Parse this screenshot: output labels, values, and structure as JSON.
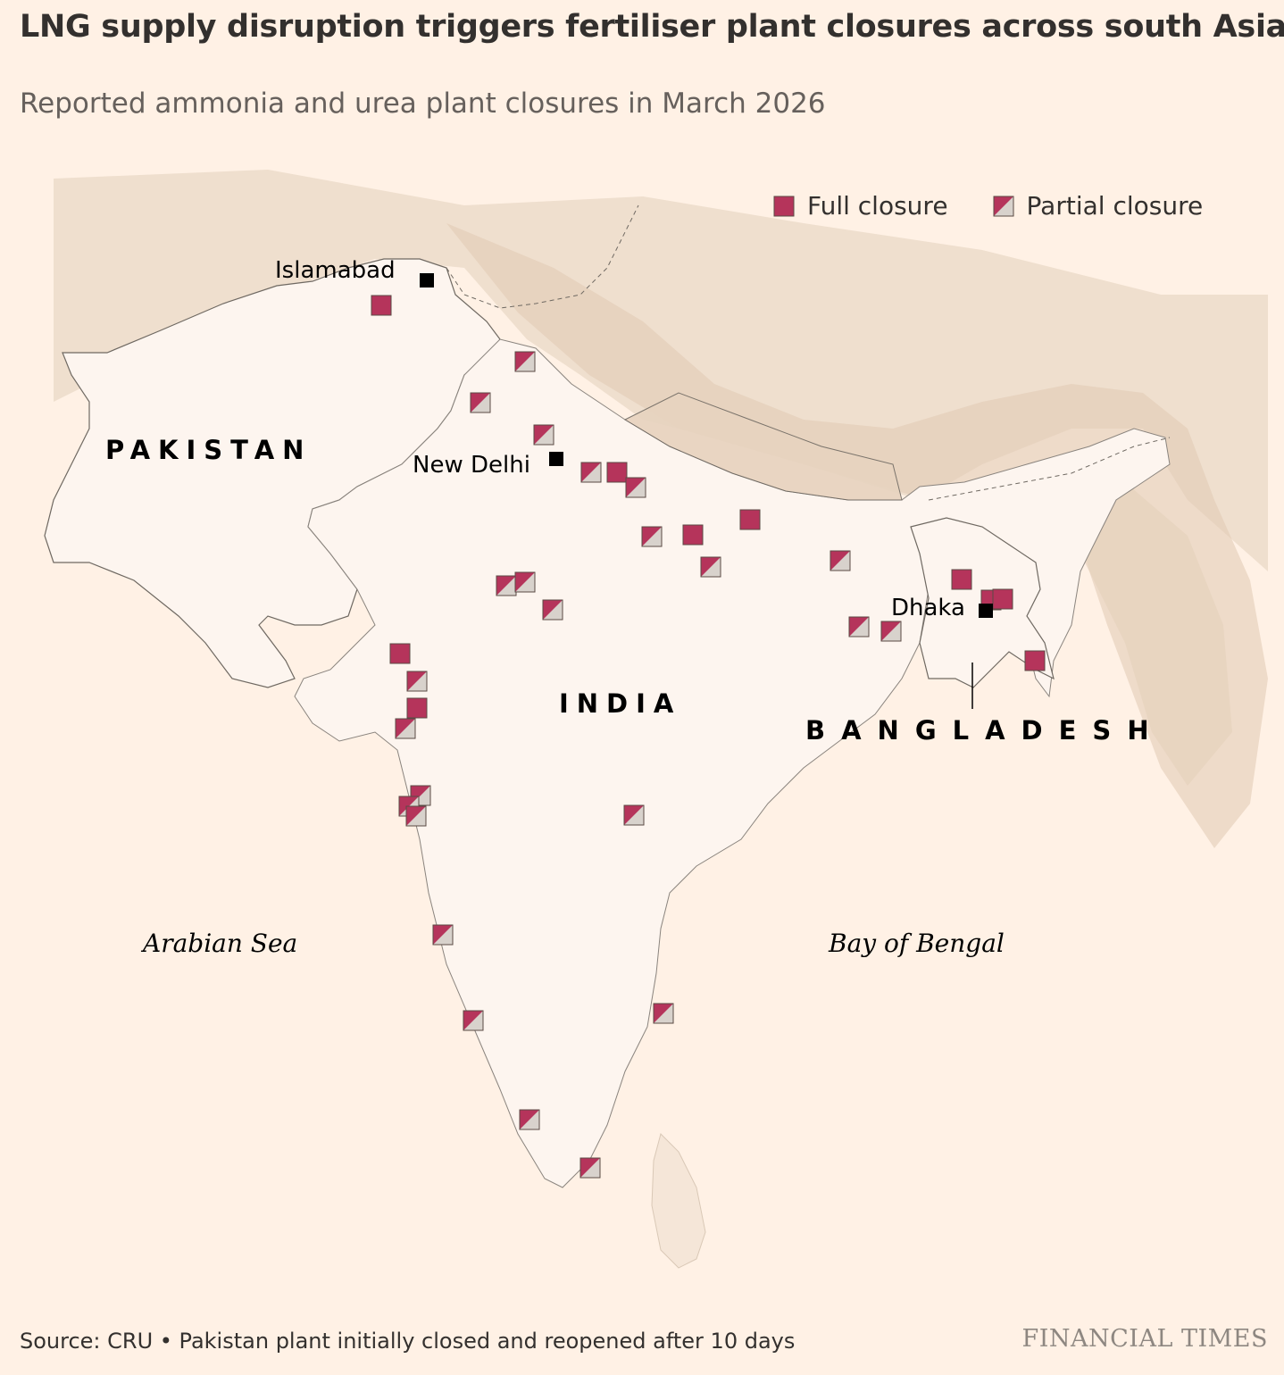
{
  "header": {
    "title": "LNG supply disruption triggers fertiliser plant closures across south Asia",
    "subtitle": "Reported ammonia and urea plant closures in March 2026"
  },
  "legend": {
    "full_label": "Full closure",
    "partial_label": "Partial closure"
  },
  "colors": {
    "full_closure": "#b5345b",
    "partial_fill": "#d8d2cc",
    "background": "#fff1e5",
    "land": "#fdf5ef",
    "mountains": "#e4d3c0"
  },
  "labels": {
    "countries": {
      "pakistan": "PAKISTAN",
      "india": "INDIA",
      "bangladesh": "BANGLADESH"
    },
    "cities": {
      "islamabad": "Islamabad",
      "new_delhi": "New Delhi",
      "dhaka": "Dhaka"
    },
    "seas": {
      "arabian": "Arabian Sea",
      "bengal": "Bay of Bengal"
    }
  },
  "footer": {
    "source": "Source: CRU • Pakistan plant initially closed and reopened after 10 days",
    "brand": "FINANCIAL TIMES"
  }
}
